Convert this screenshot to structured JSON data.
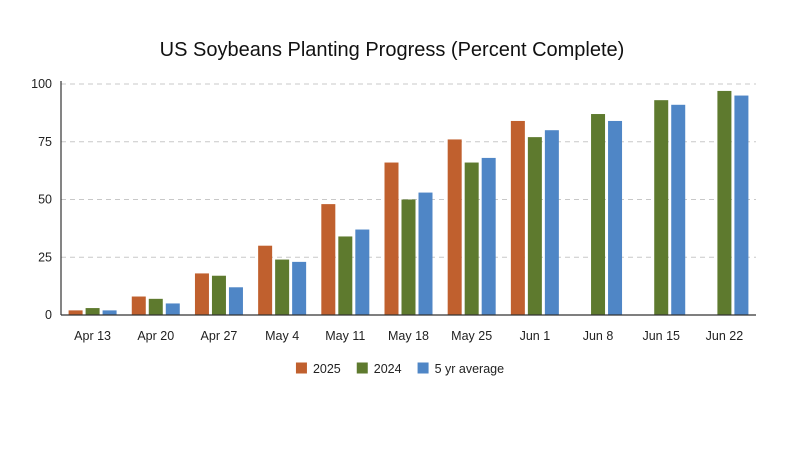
{
  "chart_data": {
    "type": "bar",
    "title": "US Soybeans Planting Progress (Percent Complete)",
    "xlabel": "",
    "ylabel": "",
    "ylim": [
      0,
      100
    ],
    "yticks": [
      0,
      25,
      50,
      75,
      100
    ],
    "grid": true,
    "legend_position": "bottom-center",
    "categories": [
      "Apr 13",
      "Apr 20",
      "Apr 27",
      "May 4",
      "May 11",
      "May 18",
      "May 25",
      "Jun 1",
      "Jun 8",
      "Jun 15",
      "Jun 22"
    ],
    "series": [
      {
        "name": "2025",
        "color": "#c0602e",
        "values": [
          2,
          8,
          18,
          30,
          48,
          66,
          76,
          84,
          null,
          null,
          null
        ]
      },
      {
        "name": "2024",
        "color": "#5e7a2e",
        "values": [
          3,
          7,
          17,
          24,
          34,
          50,
          66,
          77,
          87,
          93,
          97
        ]
      },
      {
        "name": "5 yr average",
        "color": "#4f86c6",
        "values": [
          2,
          5,
          12,
          23,
          37,
          53,
          68,
          80,
          84,
          91,
          95
        ]
      }
    ]
  }
}
